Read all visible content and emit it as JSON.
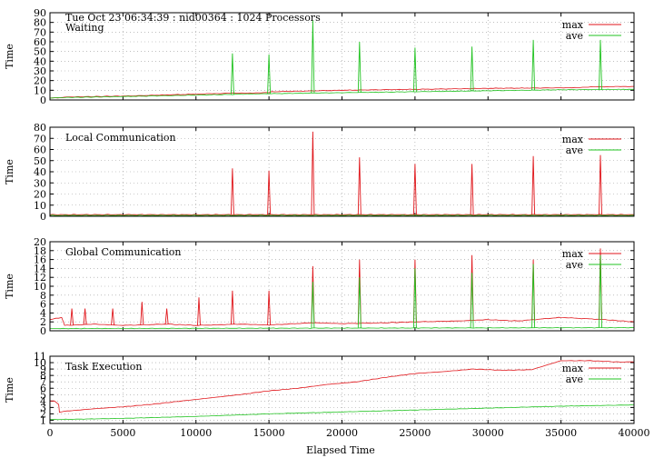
{
  "header": "Tue Oct 23 06:34:39 : nid00364 : 1024 Processors",
  "xlabel": "Elapsed Time",
  "chart_data": [
    {
      "type": "line",
      "title": "Waiting",
      "ylabel": "Time",
      "xlim": [
        0,
        40000
      ],
      "ylim": [
        0,
        90
      ],
      "yticks": [
        0,
        10,
        20,
        30,
        40,
        50,
        60,
        70,
        80,
        90
      ],
      "xticks": [
        0,
        5000,
        10000,
        15000,
        20000,
        25000,
        30000,
        35000,
        40000
      ],
      "grid": true,
      "legend": "top-right",
      "series": [
        {
          "name": "max",
          "color": "#e0161b",
          "x": [
            0,
            900,
            1000,
            5000,
            10000,
            12400,
            15000,
            15200,
            20000,
            25000,
            28000,
            30000,
            35000,
            37600,
            40000
          ],
          "y": [
            2,
            2.5,
            3,
            4,
            6,
            7,
            7.5,
            8.5,
            10,
            11,
            11.5,
            12,
            12.5,
            13.5,
            14
          ]
        },
        {
          "name": "ave",
          "color": "#22c322",
          "x": [
            0,
            1000,
            5000,
            10000,
            15000,
            20000,
            25000,
            30000,
            35000,
            40000
          ],
          "y": [
            2,
            2.5,
            3.5,
            5,
            6.5,
            7.5,
            8.5,
            9.5,
            10.5,
            11
          ],
          "spikes": [
            [
              12500,
              48
            ],
            [
              15000,
              47
            ],
            [
              18000,
              82
            ],
            [
              21200,
              60
            ],
            [
              25000,
              54
            ],
            [
              28900,
              55
            ],
            [
              33100,
              62
            ],
            [
              37700,
              62
            ]
          ]
        }
      ]
    },
    {
      "type": "line",
      "title": "Local Communication",
      "ylabel": "Time",
      "xlim": [
        0,
        40000
      ],
      "ylim": [
        0,
        80
      ],
      "yticks": [
        0,
        10,
        20,
        30,
        40,
        50,
        60,
        70,
        80
      ],
      "xticks": [
        0,
        5000,
        10000,
        15000,
        20000,
        25000,
        30000,
        35000,
        40000
      ],
      "grid": true,
      "legend": "top-right",
      "series": [
        {
          "name": "max",
          "color": "#e0161b",
          "x": [
            0,
            40000
          ],
          "y": [
            1.5,
            1.5
          ],
          "spikes": [
            [
              12500,
              43
            ],
            [
              15000,
              41
            ],
            [
              18000,
              76
            ],
            [
              21200,
              53
            ],
            [
              25000,
              47
            ],
            [
              28900,
              47
            ],
            [
              33100,
              54
            ],
            [
              37700,
              55
            ]
          ]
        },
        {
          "name": "ave",
          "color": "#22c322",
          "x": [
            0,
            40000
          ],
          "y": [
            0.8,
            0.8
          ]
        }
      ]
    },
    {
      "type": "line",
      "title": "Global Communication",
      "ylabel": "Time",
      "xlim": [
        0,
        40000
      ],
      "ylim": [
        0,
        20
      ],
      "yticks": [
        0,
        2,
        4,
        6,
        8,
        10,
        12,
        14,
        16,
        18,
        20
      ],
      "xticks": [
        0,
        5000,
        10000,
        15000,
        20000,
        25000,
        30000,
        35000,
        40000
      ],
      "grid": true,
      "legend": "top-right",
      "series": [
        {
          "name": "max",
          "color": "#e0161b",
          "x": [
            0,
            800,
            1000,
            3000,
            5000,
            8000,
            10000,
            13000,
            15000,
            18000,
            20000,
            23000,
            25000,
            28000,
            30000,
            32000,
            35000,
            38000,
            40000
          ],
          "y": [
            2.5,
            3,
            1.2,
            1.5,
            1.2,
            1.5,
            1.2,
            1.5,
            1.3,
            1.8,
            1.6,
            1.8,
            2.0,
            2.2,
            2.5,
            2.2,
            3.0,
            2.5,
            2.0
          ],
          "spikes": [
            [
              1500,
              5
            ],
            [
              2400,
              5
            ],
            [
              4300,
              5
            ],
            [
              6300,
              6.5
            ],
            [
              8000,
              5
            ],
            [
              10200,
              7.5
            ],
            [
              12500,
              9
            ],
            [
              15000,
              9
            ],
            [
              18000,
              14.5
            ],
            [
              21200,
              16
            ],
            [
              25000,
              16
            ],
            [
              28900,
              17
            ],
            [
              33100,
              16
            ],
            [
              37700,
              18.5
            ]
          ]
        },
        {
          "name": "ave",
          "color": "#22c322",
          "x": [
            0,
            40000
          ],
          "y": [
            0.5,
            0.7
          ],
          "spikes": [
            [
              18000,
              11
            ],
            [
              21200,
              12
            ],
            [
              25000,
              14
            ],
            [
              28900,
              13
            ],
            [
              33100,
              15
            ],
            [
              37700,
              17
            ]
          ]
        }
      ]
    },
    {
      "type": "line",
      "title": "Task Execution",
      "ylabel": "Time",
      "xlim": [
        0,
        40000
      ],
      "ylim": [
        0.5,
        11
      ],
      "yticks": [
        1,
        2,
        3,
        4,
        5,
        6,
        7,
        8,
        9,
        10,
        11
      ],
      "xticks": [
        0,
        5000,
        10000,
        15000,
        20000,
        25000,
        30000,
        35000,
        40000
      ],
      "xticklabels": [
        "0",
        "5000",
        "10000",
        "15000",
        "20000",
        "25000",
        "30000",
        "35000",
        "40000"
      ],
      "grid": true,
      "legend": "top-right",
      "series": [
        {
          "name": "max",
          "color": "#e0161b",
          "x": [
            0,
            300,
            600,
            650,
            1000,
            3000,
            5000,
            7000,
            9000,
            11000,
            13000,
            15000,
            17000,
            19000,
            21000,
            23000,
            25000,
            27000,
            29000,
            31000,
            33000,
            35000,
            37000,
            39000,
            40000
          ],
          "y": [
            4,
            4,
            3.5,
            2.3,
            2.4,
            2.8,
            3.1,
            3.5,
            4.0,
            4.5,
            5.0,
            5.6,
            6.0,
            6.6,
            7.0,
            7.7,
            8.3,
            8.6,
            9.0,
            8.8,
            8.9,
            10.3,
            10.3,
            10.1,
            10.1
          ]
        },
        {
          "name": "ave",
          "color": "#22c322",
          "x": [
            0,
            5000,
            10000,
            15000,
            20000,
            25000,
            30000,
            35000,
            40000
          ],
          "y": [
            1.1,
            1.3,
            1.6,
            2.0,
            2.3,
            2.6,
            2.9,
            3.2,
            3.4
          ]
        }
      ]
    }
  ]
}
